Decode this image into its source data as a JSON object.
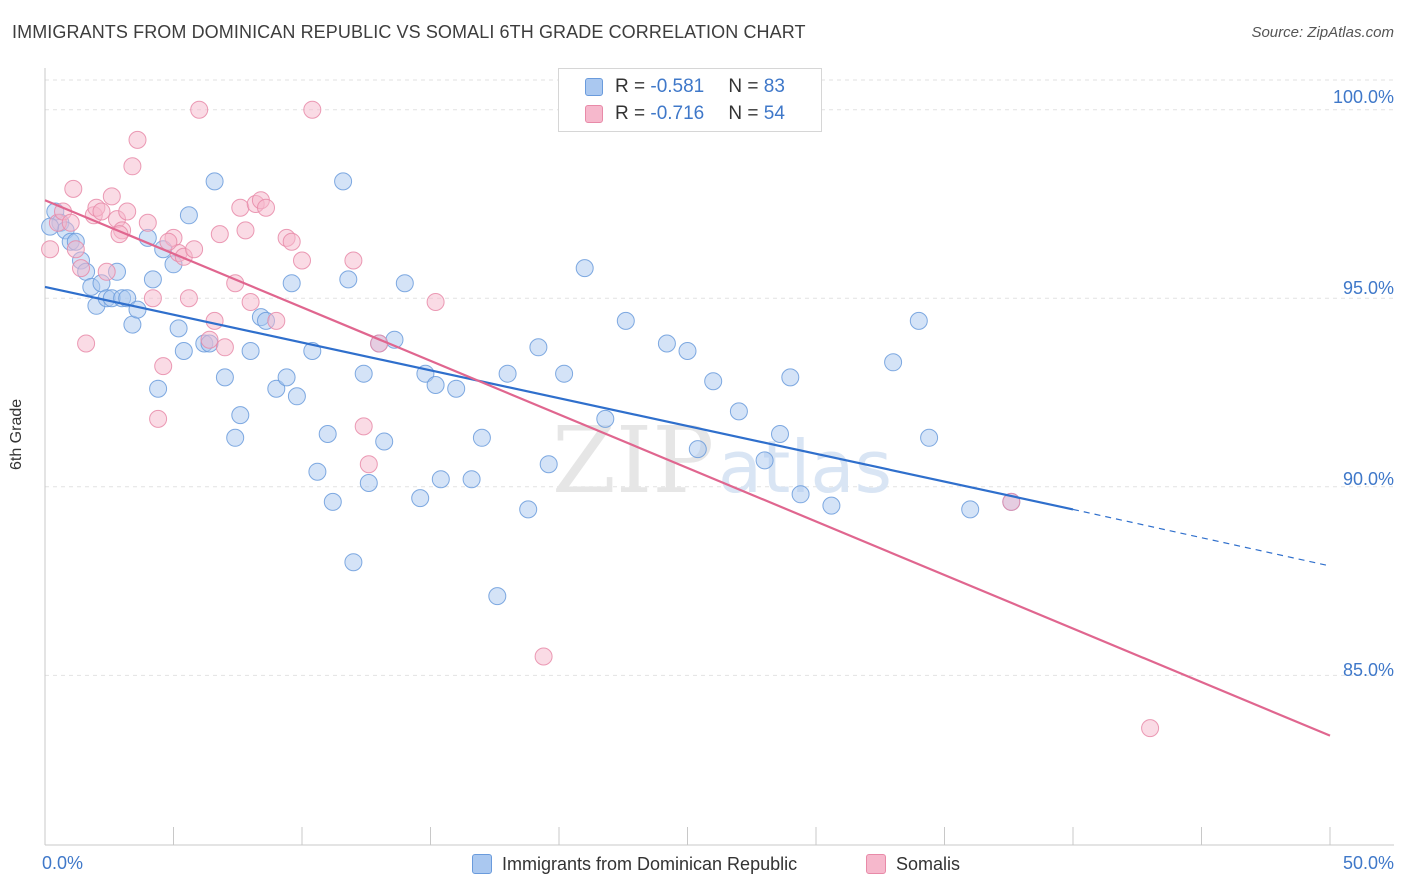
{
  "title": "IMMIGRANTS FROM DOMINICAN REPUBLIC VS SOMALI 6TH GRADE CORRELATION CHART",
  "source": "Source: ZipAtlas.com",
  "watermark": {
    "zip": "ZIP",
    "atlas": "atlas"
  },
  "colors": {
    "blue_fill": "#aac8f0",
    "blue_stroke": "#6a9bdc",
    "blue_line": "#2f6fcc",
    "pink_fill": "#f6b8cc",
    "pink_stroke": "#e88aa8",
    "pink_line": "#e0668f",
    "axis_text": "#3f78c9",
    "grid": "#e2e2e2"
  },
  "legend": {
    "rows": [
      {
        "r_label": "R = ",
        "r_value": "-0.581",
        "n_label": "N = ",
        "n_value": "83"
      },
      {
        "r_label": "R = ",
        "r_value": "-0.716",
        "n_label": "N = ",
        "n_value": "54"
      }
    ]
  },
  "chart_data": {
    "type": "scatter",
    "xlabel": "",
    "ylabel": "6th Grade",
    "xlim": [
      0,
      50
    ],
    "ylim": [
      80.5,
      101
    ],
    "x_tick_labels": [
      "0.0%",
      "50.0%"
    ],
    "y_ticks": [
      85,
      90,
      95,
      100
    ],
    "y_tick_labels": [
      "85.0%",
      "90.0%",
      "95.0%",
      "100.0%"
    ],
    "grid": true,
    "legend_position": "top-center",
    "series": [
      {
        "name": "Immigrants from Dominican Republic",
        "r": -0.581,
        "n": 83,
        "trend": {
          "x0": 0,
          "y0": 95.3,
          "x1": 40,
          "y1": 89.4,
          "dashed_to_x": 50,
          "dashed_to_y": 87.9
        },
        "points": [
          [
            0.4,
            97.3
          ],
          [
            0.6,
            97.0
          ],
          [
            0.8,
            96.8
          ],
          [
            1.0,
            96.5
          ],
          [
            1.2,
            96.5
          ],
          [
            1.4,
            96.0
          ],
          [
            1.6,
            95.7
          ],
          [
            1.8,
            95.3
          ],
          [
            2.0,
            94.8
          ],
          [
            2.2,
            95.4
          ],
          [
            2.4,
            95.0
          ],
          [
            2.6,
            95.0
          ],
          [
            2.8,
            95.7
          ],
          [
            3.0,
            95.0
          ],
          [
            3.2,
            95.0
          ],
          [
            3.4,
            94.3
          ],
          [
            3.6,
            94.7
          ],
          [
            4.0,
            96.6
          ],
          [
            4.2,
            95.5
          ],
          [
            4.4,
            92.6
          ],
          [
            4.6,
            96.3
          ],
          [
            5.0,
            95.9
          ],
          [
            5.2,
            94.2
          ],
          [
            5.4,
            93.6
          ],
          [
            5.6,
            97.2
          ],
          [
            6.2,
            93.8
          ],
          [
            6.4,
            93.8
          ],
          [
            6.6,
            98.1
          ],
          [
            7.0,
            92.9
          ],
          [
            7.4,
            91.3
          ],
          [
            7.6,
            91.9
          ],
          [
            8.0,
            93.6
          ],
          [
            8.4,
            94.5
          ],
          [
            8.6,
            94.4
          ],
          [
            9.0,
            92.6
          ],
          [
            9.4,
            92.9
          ],
          [
            9.8,
            92.4
          ],
          [
            9.6,
            95.4
          ],
          [
            10.4,
            93.6
          ],
          [
            10.6,
            90.4
          ],
          [
            11.0,
            91.4
          ],
          [
            11.2,
            89.6
          ],
          [
            11.6,
            98.1
          ],
          [
            11.8,
            95.5
          ],
          [
            12.0,
            88.0
          ],
          [
            12.4,
            93.0
          ],
          [
            12.6,
            90.1
          ],
          [
            13.0,
            93.8
          ],
          [
            13.2,
            91.2
          ],
          [
            13.6,
            93.9
          ],
          [
            14.0,
            95.4
          ],
          [
            14.6,
            89.7
          ],
          [
            14.8,
            93.0
          ],
          [
            15.2,
            92.7
          ],
          [
            15.4,
            90.2
          ],
          [
            16.0,
            92.6
          ],
          [
            16.6,
            90.2
          ],
          [
            17.0,
            91.3
          ],
          [
            17.6,
            87.1
          ],
          [
            18.0,
            93.0
          ],
          [
            18.8,
            89.4
          ],
          [
            19.2,
            93.7
          ],
          [
            19.6,
            90.6
          ],
          [
            20.2,
            93.0
          ],
          [
            21.0,
            95.8
          ],
          [
            21.8,
            91.8
          ],
          [
            22.6,
            94.4
          ],
          [
            24.2,
            93.8
          ],
          [
            25.0,
            93.6
          ],
          [
            25.4,
            91.0
          ],
          [
            26.0,
            92.8
          ],
          [
            27.0,
            92.0
          ],
          [
            28.0,
            90.7
          ],
          [
            28.6,
            91.4
          ],
          [
            29.0,
            92.9
          ],
          [
            29.4,
            89.8
          ],
          [
            30.6,
            89.5
          ],
          [
            33.0,
            93.3
          ],
          [
            34.0,
            94.4
          ],
          [
            34.4,
            91.3
          ],
          [
            36.0,
            89.4
          ],
          [
            37.6,
            89.6
          ],
          [
            0.2,
            96.9
          ]
        ]
      },
      {
        "name": "Somalis",
        "r": -0.716,
        "n": 54,
        "trend": {
          "x0": 0,
          "y0": 97.6,
          "x1": 50,
          "y1": 83.4
        },
        "points": [
          [
            0.2,
            96.3
          ],
          [
            0.5,
            97.0
          ],
          [
            0.7,
            97.3
          ],
          [
            1.0,
            97.0
          ],
          [
            1.2,
            96.3
          ],
          [
            1.4,
            95.8
          ],
          [
            1.6,
            93.8
          ],
          [
            1.9,
            97.2
          ],
          [
            2.0,
            97.4
          ],
          [
            2.2,
            97.3
          ],
          [
            2.4,
            95.7
          ],
          [
            2.6,
            97.7
          ],
          [
            2.8,
            97.1
          ],
          [
            3.0,
            96.8
          ],
          [
            3.4,
            98.5
          ],
          [
            3.6,
            99.2
          ],
          [
            4.0,
            97.0
          ],
          [
            4.2,
            95.0
          ],
          [
            4.4,
            91.8
          ],
          [
            4.6,
            93.2
          ],
          [
            5.0,
            96.6
          ],
          [
            5.2,
            96.2
          ],
          [
            5.4,
            96.1
          ],
          [
            5.6,
            95.0
          ],
          [
            6.0,
            100.0
          ],
          [
            6.4,
            93.9
          ],
          [
            6.6,
            94.4
          ],
          [
            6.8,
            96.7
          ],
          [
            7.0,
            93.7
          ],
          [
            7.4,
            95.4
          ],
          [
            7.6,
            97.4
          ],
          [
            7.8,
            96.8
          ],
          [
            8.0,
            94.9
          ],
          [
            8.2,
            97.5
          ],
          [
            8.4,
            97.6
          ],
          [
            8.6,
            97.4
          ],
          [
            9.0,
            94.4
          ],
          [
            9.4,
            96.6
          ],
          [
            9.6,
            96.5
          ],
          [
            10.0,
            96.0
          ],
          [
            10.4,
            100.0
          ],
          [
            12.0,
            96.0
          ],
          [
            12.4,
            91.6
          ],
          [
            12.6,
            90.6
          ],
          [
            13.0,
            93.8
          ],
          [
            15.2,
            94.9
          ],
          [
            19.4,
            85.5
          ],
          [
            37.6,
            89.6
          ],
          [
            43.0,
            83.6
          ],
          [
            3.2,
            97.3
          ],
          [
            2.9,
            96.7
          ],
          [
            5.8,
            96.3
          ],
          [
            1.1,
            97.9
          ],
          [
            4.8,
            96.5
          ]
        ]
      }
    ]
  },
  "bottom_legend": [
    {
      "label": "Immigrants from Dominican Republic"
    },
    {
      "label": "Somalis"
    }
  ]
}
